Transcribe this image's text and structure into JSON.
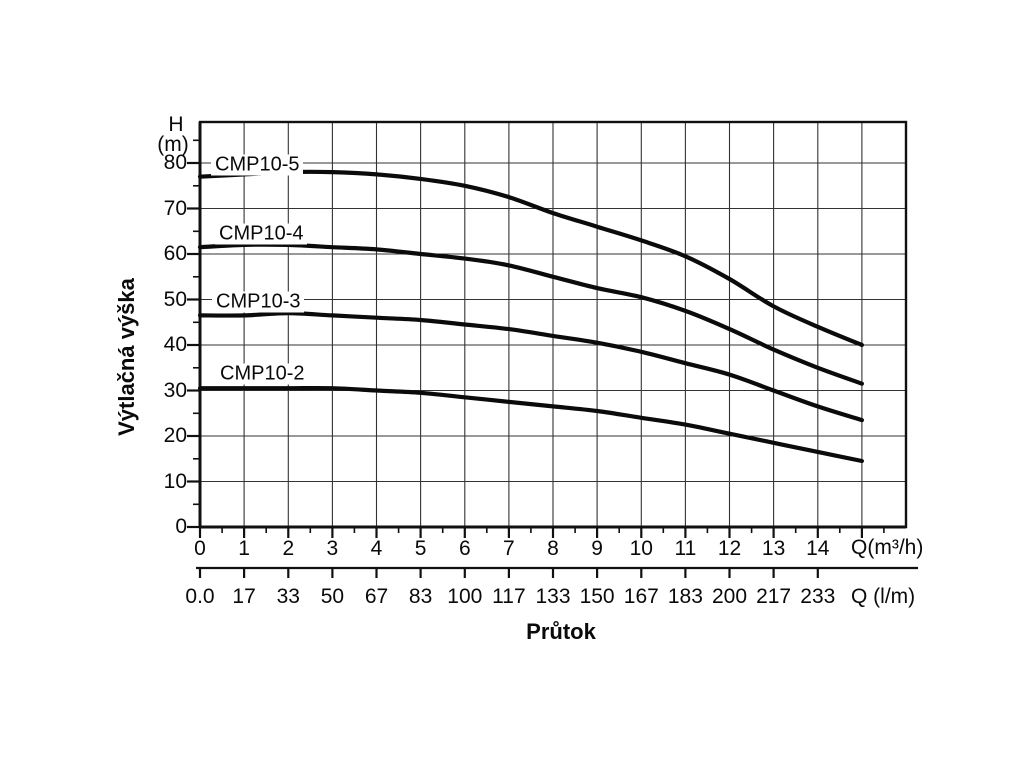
{
  "labels": {
    "h_symbol": "H",
    "m_unit": "(m)",
    "y_axis_title": "Výtlačná výška",
    "x_axis_title": "Průtok",
    "x_primary_unit": "Q(m³/h)",
    "x_secondary_unit": "Q (l/m)"
  },
  "chart_data": {
    "type": "line",
    "title": "",
    "xlabel": "Průtok",
    "ylabel": "Výtlačná výška (m)",
    "x_primary_unit": "Q(m³/h)",
    "x_secondary_unit": "Q (l/m)",
    "xlim": [
      0,
      16
    ],
    "ylim": [
      0,
      90
    ],
    "grid": true,
    "legend_position": "inline-curve-labels",
    "line_color": "#0b0b0b",
    "x": [
      0,
      1,
      2,
      3,
      4,
      5,
      6,
      7,
      8,
      9,
      10,
      11,
      12,
      13,
      14,
      15
    ],
    "x_ticks_m3h": [
      "0",
      "1",
      "2",
      "3",
      "4",
      "5",
      "6",
      "7",
      "8",
      "9",
      "10",
      "11",
      "12",
      "13",
      "14"
    ],
    "x_ticks_lm": [
      "0.0",
      "17",
      "33",
      "50",
      "67",
      "83",
      "100",
      "117",
      "133",
      "150",
      "167",
      "183",
      "200",
      "217",
      "233"
    ],
    "y_ticks": [
      "0",
      "10",
      "20",
      "30",
      "40",
      "50",
      "60",
      "70",
      "80"
    ],
    "series": [
      {
        "name": "CMP10-5",
        "values": [
          77,
          77.5,
          78,
          78,
          77.5,
          76.5,
          75,
          72.5,
          69,
          66,
          63,
          59.5,
          54.5,
          48.5,
          44,
          40
        ]
      },
      {
        "name": "CMP10-4",
        "values": [
          61.5,
          62,
          62,
          61.5,
          61,
          60,
          59,
          57.5,
          55,
          52.5,
          50.5,
          47.5,
          43.5,
          39,
          35,
          31.5
        ]
      },
      {
        "name": "CMP10-3",
        "values": [
          46.5,
          46.5,
          47,
          46.5,
          46,
          45.5,
          44.5,
          43.5,
          42,
          40.5,
          38.5,
          36,
          33.5,
          30,
          26.5,
          23.5
        ]
      },
      {
        "name": "CMP10-2",
        "values": [
          30.5,
          30.5,
          30.5,
          30.5,
          30,
          29.5,
          28.5,
          27.5,
          26.5,
          25.5,
          24,
          22.5,
          20.5,
          18.5,
          16.5,
          14.5
        ]
      }
    ]
  }
}
